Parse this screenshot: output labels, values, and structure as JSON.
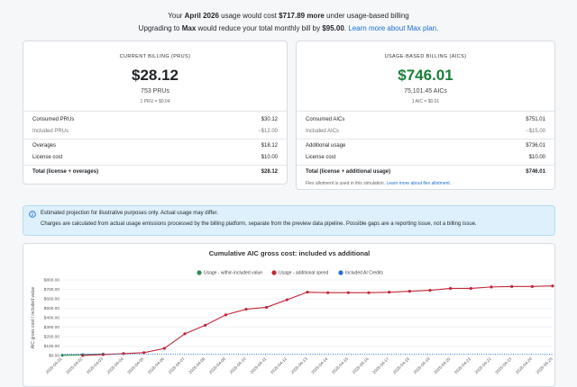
{
  "header": {
    "line1": [
      "Your ",
      "April 2026",
      " usage would cost ",
      "$717.89 more",
      " under usage-based billing"
    ],
    "line2": [
      "Upgrading to ",
      "Max",
      " would reduce your total monthly bill by ",
      "$95.00",
      ". ",
      "Learn more about Max plan."
    ]
  },
  "current": {
    "caption": "CURRENT BILLING (PRUS)",
    "amount": "$28.12",
    "units": "753 PRUs",
    "rate": "1 PRU = $0.04",
    "rows": [
      [
        "Consumed PRUs",
        "$30.12"
      ],
      [
        "Included PRUs",
        "−$12.00"
      ],
      [
        "Overages",
        "$18.12"
      ],
      [
        "License cost",
        "$10.00"
      ],
      [
        "Total (license + overages)",
        "$28.12"
      ]
    ]
  },
  "usage": {
    "caption": "USAGE-BASED BILLING (AICS)",
    "amount": "$746.01",
    "units": "75,101.45 AICs",
    "rate": "1 AIC = $0.01",
    "rows": [
      [
        "Consumed AICs",
        "$751.01"
      ],
      [
        "Included AICs",
        "−$15.00"
      ],
      [
        "Additional usage",
        "$736.01"
      ],
      [
        "License cost",
        "$10.00"
      ],
      [
        "Total (license + additional usage)",
        "$746.01"
      ]
    ],
    "note": "Flex allotment is used in this simulation.",
    "note_link": "Learn more about flex allotment."
  },
  "info": {
    "line1": "Estimated projection for illustrative purposes only. Actual usage may differ.",
    "line2": "Charges are calculated from actual usage emissions processed by the billing platform, separate from the preview data pipeline. Possible gaps are a reporting issue, not a billing issue."
  },
  "chart_data": {
    "type": "line",
    "title": "Cumulative AIC gross cost: included vs additional",
    "y_label": "AIC gross cost / included value",
    "categories": [
      "2026-04-01",
      "2026-04-02",
      "2026-04-03",
      "2026-04-04",
      "2026-04-05",
      "2026-04-06",
      "2026-04-07",
      "2026-04-08",
      "2026-04-09",
      "2026-04-10",
      "2026-04-11",
      "2026-04-12",
      "2026-04-13",
      "2026-04-14",
      "2026-04-15",
      "2026-04-16",
      "2026-04-17",
      "2026-04-18",
      "2026-04-19",
      "2026-04-20",
      "2026-04-21",
      "2026-04-22",
      "2026-04-23",
      "2026-04-24",
      "2026-04-25"
    ],
    "series": [
      {
        "name": "Usage - within included value",
        "color": "#2e8b57",
        "values": [
          2,
          8,
          15,
          null,
          null,
          null,
          null,
          null,
          null,
          null,
          null,
          null,
          null,
          null,
          null,
          null,
          null,
          null,
          null,
          null,
          null,
          null,
          null,
          null,
          null
        ]
      },
      {
        "name": "Usage - additional spend",
        "color": "#c0283a",
        "values": [
          null,
          0,
          10,
          20,
          30,
          75,
          230,
          320,
          430,
          490,
          510,
          590,
          670,
          665,
          665,
          665,
          670,
          680,
          690,
          710,
          710,
          725,
          730,
          730,
          736
        ]
      },
      {
        "name": "Included AI Credits",
        "color": "#1f6fd6",
        "values": [
          15,
          15,
          15,
          15,
          15,
          15,
          15,
          15,
          15,
          15,
          15,
          15,
          15,
          15,
          15,
          15,
          15,
          15,
          15,
          15,
          15,
          15,
          15,
          15,
          15
        ]
      }
    ],
    "ylim": [
      0,
      800
    ],
    "yticks": [
      {
        "value": 0,
        "label": "$0.00"
      },
      {
        "value": 100,
        "label": "$100.00"
      },
      {
        "value": 200,
        "label": "$200.00"
      },
      {
        "value": 300,
        "label": "$300.00"
      },
      {
        "value": 400,
        "label": "$400.00"
      },
      {
        "value": 500,
        "label": "$500.00"
      },
      {
        "value": 600,
        "label": "$600.00"
      },
      {
        "value": 700,
        "label": "$700.00"
      },
      {
        "value": 800,
        "label": "$800.00"
      }
    ],
    "grid": true
  }
}
